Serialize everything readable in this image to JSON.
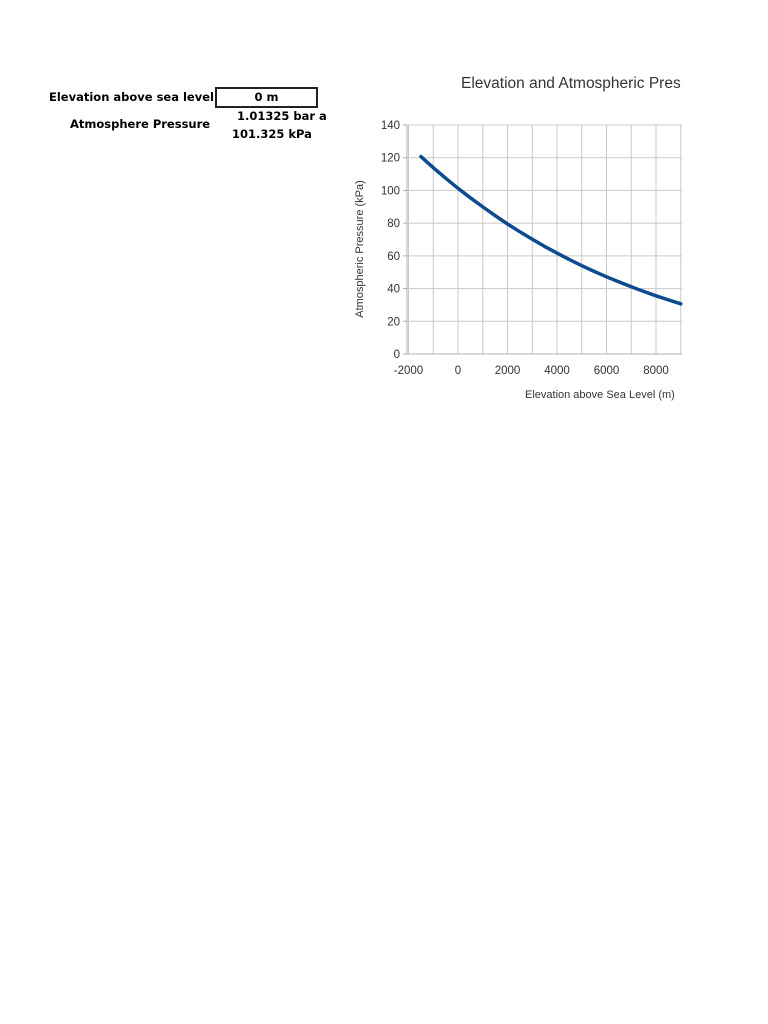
{
  "inputs": {
    "elevation_label": "Elevation above sea level",
    "elevation_value": "0 m",
    "pressure_label": "Atmosphere Pressure",
    "pressure_bar": "1.01325 bar a",
    "pressure_kpa": "101.325 kPa"
  },
  "colors": {
    "series": "#0d4a8f",
    "grid": "#c8c8c8",
    "text": "#333333"
  },
  "chart_data": {
    "type": "line",
    "title": "Elevation and Atmospheric Pres",
    "xlabel": "Elevation above Sea Level (m)",
    "ylabel": "Atmospheric Pressure (kPa)",
    "xlim": [
      -2000,
      9000
    ],
    "ylim": [
      0,
      140
    ],
    "x_ticks": [
      -2000,
      0,
      2000,
      4000,
      6000,
      8000
    ],
    "y_ticks": [
      0,
      20,
      40,
      60,
      80,
      100,
      120,
      140
    ],
    "grid": true,
    "series": [
      {
        "x": [
          -1500,
          -1000,
          -500,
          0,
          500,
          1000,
          1500,
          2000,
          2500,
          3000,
          3500,
          4000,
          4500,
          5000,
          5500,
          6000,
          6500,
          7000,
          7500,
          8000,
          8500,
          9000
        ],
        "values": [
          120.7,
          113.9,
          107.5,
          101.3,
          95.5,
          89.9,
          84.6,
          79.5,
          74.7,
          70.1,
          65.8,
          61.7,
          57.7,
          54.0,
          50.5,
          47.2,
          44.1,
          41.1,
          38.3,
          35.6,
          33.1,
          30.7
        ]
      }
    ]
  }
}
